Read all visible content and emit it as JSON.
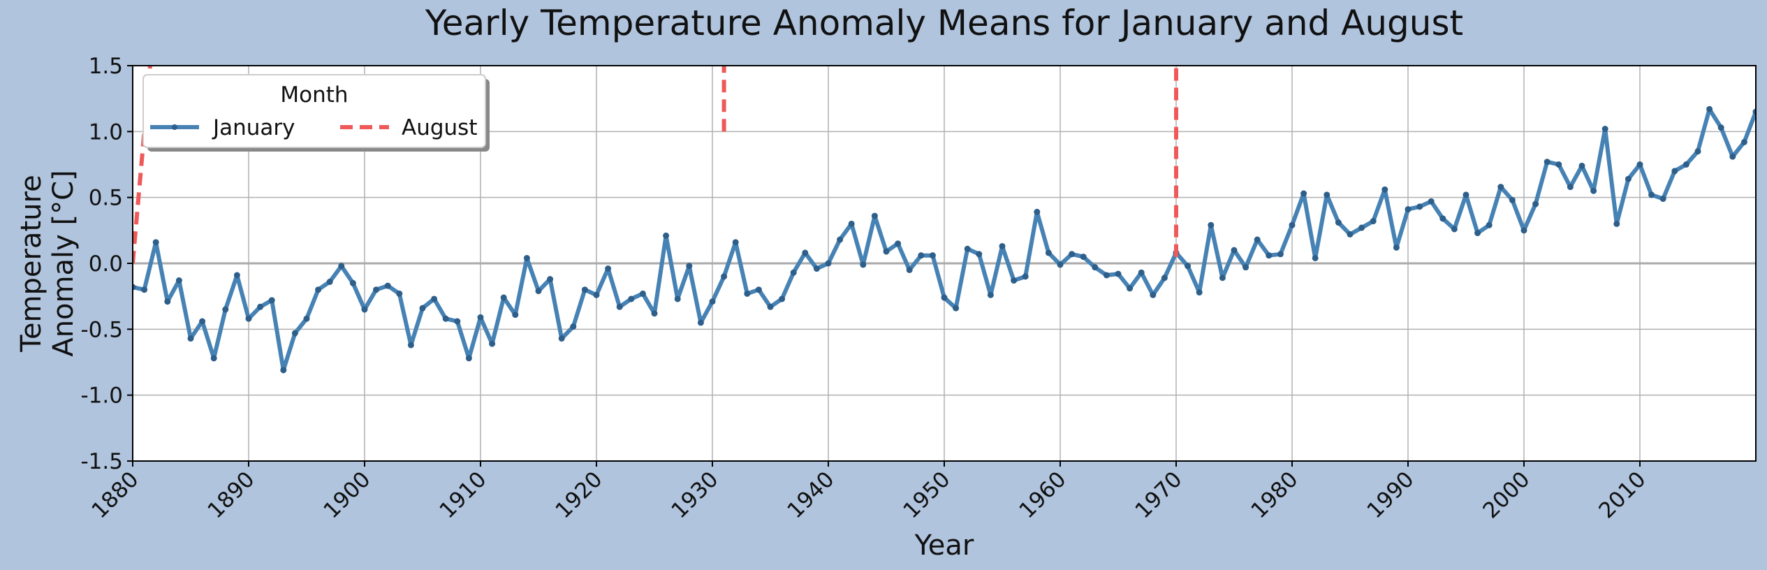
{
  "chart_data": {
    "type": "line",
    "title": "Yearly Temperature Anomaly Means for January and August",
    "xlabel": "Year",
    "ylabel_lines": [
      "Temperature",
      "Anomaly [°C]"
    ],
    "xlim": [
      1880,
      2020
    ],
    "ylim": [
      -1.5,
      1.5
    ],
    "x_ticks": [
      1880,
      1890,
      1900,
      1910,
      1920,
      1930,
      1940,
      1950,
      1960,
      1970,
      1980,
      1990,
      2000,
      2010
    ],
    "y_ticks": [
      -1.5,
      -1.0,
      -0.5,
      0.0,
      0.5,
      1.0,
      1.5
    ],
    "y_tick_labels": [
      "-1.5",
      "-1.0",
      "-0.5",
      "0.0",
      "0.5",
      "1.0",
      "1.5"
    ],
    "grid": true,
    "zero_line": true,
    "legend": {
      "title": "Month",
      "placement": "upper-left",
      "ncol": 2
    },
    "colors": {
      "january": "#4682b4",
      "august": "#ee5a5a",
      "background": "#b0c4de",
      "grid": "#b0b0b0",
      "zero_line": "#aaaaaa"
    },
    "series": [
      {
        "name": "January",
        "style": "solid-with-markers",
        "x": [
          1880,
          1881,
          1882,
          1883,
          1884,
          1885,
          1886,
          1887,
          1888,
          1889,
          1890,
          1891,
          1892,
          1893,
          1894,
          1895,
          1896,
          1897,
          1898,
          1899,
          1900,
          1901,
          1902,
          1903,
          1904,
          1905,
          1906,
          1907,
          1908,
          1909,
          1910,
          1911,
          1912,
          1913,
          1914,
          1915,
          1916,
          1917,
          1918,
          1919,
          1920,
          1921,
          1922,
          1923,
          1924,
          1925,
          1926,
          1927,
          1928,
          1929,
          1930,
          1931,
          1932,
          1933,
          1934,
          1935,
          1936,
          1937,
          1938,
          1939,
          1940,
          1941,
          1942,
          1943,
          1944,
          1945,
          1946,
          1947,
          1948,
          1949,
          1950,
          1951,
          1952,
          1953,
          1954,
          1955,
          1956,
          1957,
          1958,
          1959,
          1960,
          1961,
          1962,
          1963,
          1964,
          1965,
          1966,
          1967,
          1968,
          1969,
          1970,
          1971,
          1972,
          1973,
          1974,
          1975,
          1976,
          1977,
          1978,
          1979,
          1980,
          1981,
          1982,
          1983,
          1984,
          1985,
          1986,
          1987,
          1988,
          1989,
          1990,
          1991,
          1992,
          1993,
          1994,
          1995,
          1996,
          1997,
          1998,
          1999,
          2000,
          2001,
          2002,
          2003,
          2004,
          2005,
          2006,
          2007,
          2008,
          2009,
          2010,
          2011,
          2012,
          2013,
          2014,
          2015,
          2016,
          2017,
          2018,
          2019,
          2020
        ],
        "y": [
          -0.18,
          -0.2,
          0.16,
          -0.29,
          -0.13,
          -0.57,
          -0.44,
          -0.72,
          -0.35,
          -0.09,
          -0.42,
          -0.33,
          -0.28,
          -0.81,
          -0.53,
          -0.42,
          -0.2,
          -0.14,
          -0.02,
          -0.15,
          -0.35,
          -0.2,
          -0.17,
          -0.23,
          -0.62,
          -0.34,
          -0.27,
          -0.42,
          -0.44,
          -0.72,
          -0.41,
          -0.61,
          -0.26,
          -0.39,
          0.04,
          -0.21,
          -0.12,
          -0.57,
          -0.48,
          -0.2,
          -0.24,
          -0.04,
          -0.33,
          -0.27,
          -0.23,
          -0.38,
          0.21,
          -0.27,
          -0.02,
          -0.45,
          -0.29,
          -0.1,
          0.16,
          -0.23,
          -0.2,
          -0.33,
          -0.27,
          -0.07,
          0.08,
          -0.04,
          0.0,
          0.18,
          0.3,
          -0.01,
          0.36,
          0.09,
          0.15,
          -0.05,
          0.06,
          0.06,
          -0.26,
          -0.34,
          0.11,
          0.07,
          -0.24,
          0.13,
          -0.13,
          -0.1,
          0.39,
          0.08,
          -0.01,
          0.07,
          0.05,
          -0.03,
          -0.09,
          -0.08,
          -0.19,
          -0.07,
          -0.24,
          -0.11,
          0.08,
          -0.02,
          -0.22,
          0.29,
          -0.11,
          0.1,
          -0.03,
          0.18,
          0.06,
          0.07,
          0.29,
          0.53,
          0.04,
          0.52,
          0.31,
          0.22,
          0.27,
          0.32,
          0.56,
          0.12,
          0.41,
          0.43,
          0.47,
          0.34,
          0.26,
          0.52,
          0.23,
          0.29,
          0.58,
          0.48,
          0.25,
          0.45,
          0.77,
          0.75,
          0.58,
          0.74,
          0.55,
          1.02,
          0.3,
          0.64,
          0.75,
          0.52,
          0.49,
          0.7,
          0.75,
          0.85,
          1.17,
          1.03,
          0.81,
          0.92,
          1.15
        ]
      },
      {
        "name": "August",
        "style": "dashed",
        "segments": [
          {
            "x": [
              1880,
              1881.5
            ],
            "y": [
              0.0,
              1.5
            ]
          },
          {
            "x": [
              1931,
              1931
            ],
            "y": [
              1.0,
              1.5
            ]
          },
          {
            "x": [
              1970,
              1970
            ],
            "y": [
              0.05,
              1.5
            ]
          }
        ]
      }
    ]
  }
}
